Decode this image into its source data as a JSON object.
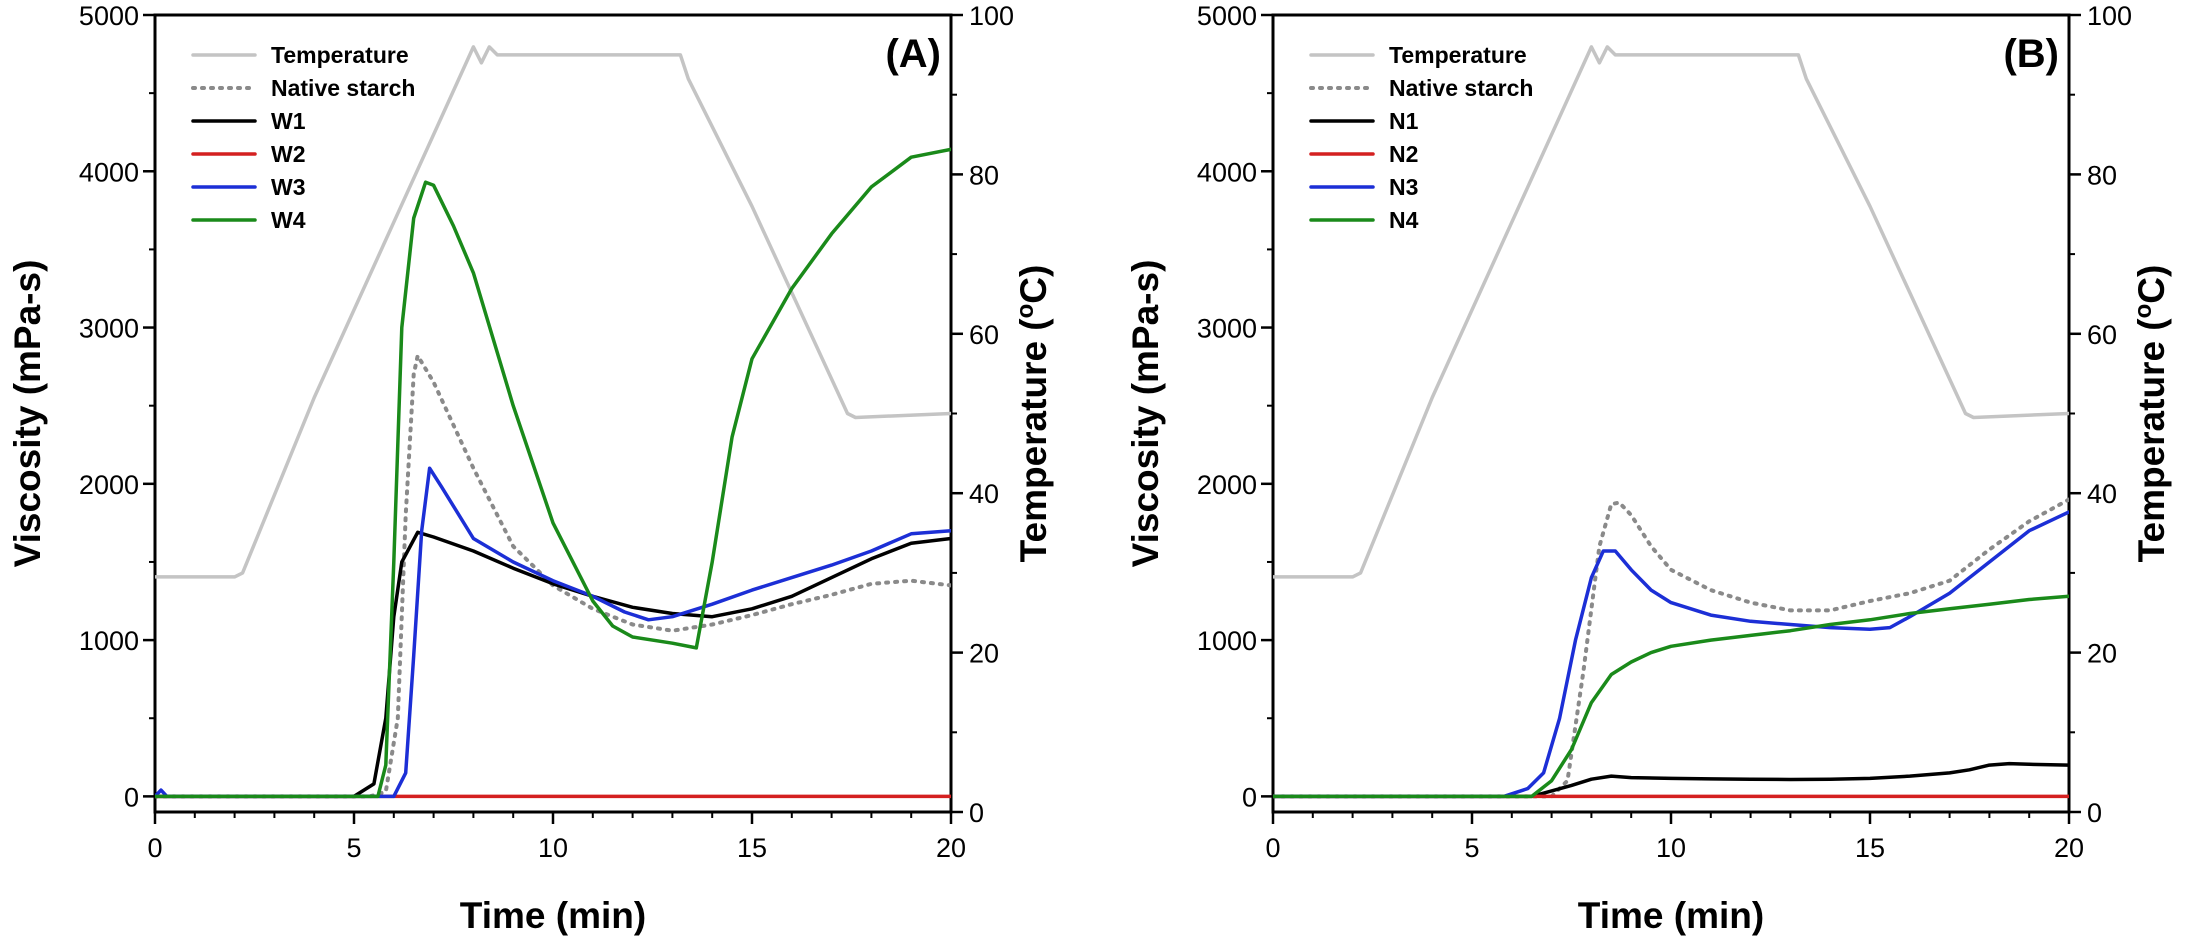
{
  "chart_data": [
    {
      "type": "line",
      "panel_label": "(A)",
      "xlabel": "Time (min)",
      "ylabel_left": "Viscosity (mPa-s)",
      "ylabel_right_prefix": "Temperature (",
      "ylabel_right_super": "o",
      "ylabel_right_suffix": "C)",
      "xlim": [
        0,
        20
      ],
      "ylim_left": [
        -100,
        5000
      ],
      "ylim_right": [
        0,
        100
      ],
      "xticks": [
        "0",
        "5",
        "10",
        "15",
        "20"
      ],
      "yticks_left": [
        "0",
        "1000",
        "2000",
        "3000",
        "4000",
        "5000"
      ],
      "yticks_right": [
        "0",
        "20",
        "40",
        "60",
        "80",
        "100"
      ],
      "legend_position": "top-left",
      "series": [
        {
          "name": "Temperature",
          "axis": "right",
          "color": "#c4c4c4",
          "dash": "solid",
          "x": [
            0,
            2,
            2.2,
            4,
            6,
            8,
            8.2,
            8.4,
            8.6,
            9,
            12,
            13.2,
            13.4,
            15,
            17.4,
            17.6,
            20
          ],
          "y": [
            29.5,
            29.5,
            30,
            52,
            74,
            96,
            94,
            96,
            95,
            95,
            95,
            95,
            92,
            76,
            50,
            49.5,
            50
          ]
        },
        {
          "name": "Native starch",
          "axis": "left",
          "color": "#8a8a8a",
          "dash": "dot",
          "x": [
            0,
            5.4,
            5.8,
            6.1,
            6.3,
            6.5,
            6.6,
            7,
            8,
            9,
            10,
            11,
            12,
            13,
            14,
            15,
            16,
            17,
            18,
            19,
            20
          ],
          "y": [
            0,
            0,
            30,
            500,
            1800,
            2700,
            2820,
            2650,
            2100,
            1600,
            1350,
            1200,
            1100,
            1060,
            1100,
            1160,
            1230,
            1290,
            1360,
            1380,
            1350
          ]
        },
        {
          "name": "W1",
          "axis": "left",
          "color": "#000000",
          "dash": "solid",
          "x": [
            0,
            5,
            5.5,
            5.8,
            6,
            6.2,
            6.6,
            7,
            8,
            9,
            10,
            11,
            12,
            13,
            14,
            15,
            16,
            17,
            18,
            19,
            20
          ],
          "y": [
            0,
            0,
            80,
            500,
            1150,
            1500,
            1690,
            1660,
            1570,
            1460,
            1360,
            1280,
            1210,
            1170,
            1150,
            1200,
            1280,
            1400,
            1520,
            1620,
            1650
          ]
        },
        {
          "name": "W2",
          "axis": "left",
          "color": "#d42020",
          "dash": "solid",
          "x": [
            0,
            20
          ],
          "y": [
            0,
            0
          ]
        },
        {
          "name": "W3",
          "axis": "left",
          "color": "#1c2fd6",
          "dash": "solid",
          "x": [
            0,
            0.15,
            0.3,
            6,
            6.3,
            6.5,
            6.7,
            6.9,
            7.2,
            8,
            9,
            10,
            11,
            11.8,
            12.4,
            13,
            14,
            15,
            16,
            17,
            18,
            19,
            20
          ],
          "y": [
            0,
            40,
            0,
            0,
            150,
            900,
            1700,
            2100,
            1980,
            1650,
            1500,
            1380,
            1280,
            1180,
            1130,
            1150,
            1230,
            1320,
            1400,
            1480,
            1570,
            1680,
            1700
          ]
        },
        {
          "name": "W4",
          "axis": "left",
          "color": "#1a8a1a",
          "dash": "solid",
          "x": [
            0,
            5.6,
            5.8,
            6,
            6.2,
            6.5,
            6.8,
            7,
            7.5,
            8,
            9,
            10,
            11,
            11.5,
            12,
            13,
            13.6,
            14,
            14.5,
            15,
            16,
            17,
            18,
            19,
            20
          ],
          "y": [
            0,
            0,
            200,
            1500,
            3000,
            3700,
            3930,
            3910,
            3650,
            3350,
            2500,
            1750,
            1250,
            1090,
            1020,
            980,
            950,
            1500,
            2300,
            2800,
            3250,
            3600,
            3900,
            4090,
            4140
          ]
        }
      ]
    },
    {
      "type": "line",
      "panel_label": "(B)",
      "xlabel": "Time (min)",
      "ylabel_left": "Viscosity (mPa-s)",
      "ylabel_right_prefix": "Temperature (",
      "ylabel_right_super": "o",
      "ylabel_right_suffix": "C)",
      "xlim": [
        0,
        20
      ],
      "ylim_left": [
        -100,
        5000
      ],
      "ylim_right": [
        0,
        100
      ],
      "xticks": [
        "0",
        "5",
        "10",
        "15",
        "20"
      ],
      "yticks_left": [
        "0",
        "1000",
        "2000",
        "3000",
        "4000",
        "5000"
      ],
      "yticks_right": [
        "0",
        "20",
        "40",
        "60",
        "80",
        "100"
      ],
      "legend_position": "top-left",
      "series": [
        {
          "name": "Temperature",
          "axis": "right",
          "color": "#c4c4c4",
          "dash": "solid",
          "x": [
            0,
            2,
            2.2,
            4,
            6,
            8,
            8.2,
            8.4,
            8.6,
            9,
            12,
            13.2,
            13.4,
            15,
            17.4,
            17.6,
            20
          ],
          "y": [
            29.5,
            29.5,
            30,
            52,
            74,
            96,
            94,
            96,
            95,
            95,
            95,
            95,
            92,
            76,
            50,
            49.5,
            50
          ]
        },
        {
          "name": "Native starch",
          "axis": "left",
          "color": "#8a8a8a",
          "dash": "dot",
          "x": [
            0,
            7,
            7.4,
            7.8,
            8.2,
            8.5,
            8.7,
            9,
            9.5,
            10,
            11,
            12,
            13,
            14,
            15,
            16,
            17,
            18,
            19,
            20
          ],
          "y": [
            0,
            0,
            100,
            800,
            1600,
            1870,
            1880,
            1800,
            1600,
            1450,
            1320,
            1240,
            1190,
            1190,
            1250,
            1300,
            1380,
            1580,
            1760,
            1900
          ]
        },
        {
          "name": "N1",
          "axis": "left",
          "color": "#000000",
          "dash": "solid",
          "x": [
            0,
            6.5,
            7.5,
            8,
            8.5,
            9,
            10,
            11,
            12,
            13,
            14,
            15,
            16,
            17,
            17.5,
            18,
            18.5,
            19,
            20
          ],
          "y": [
            0,
            0,
            70,
            110,
            130,
            120,
            115,
            112,
            110,
            108,
            110,
            115,
            130,
            150,
            170,
            200,
            210,
            205,
            200
          ]
        },
        {
          "name": "N2",
          "axis": "left",
          "color": "#d42020",
          "dash": "solid",
          "x": [
            0,
            20
          ],
          "y": [
            0,
            0
          ]
        },
        {
          "name": "N3",
          "axis": "left",
          "color": "#1c2fd6",
          "dash": "solid",
          "x": [
            0,
            5.8,
            6.4,
            6.8,
            7.2,
            7.6,
            8,
            8.3,
            8.6,
            9,
            9.5,
            10,
            11,
            12,
            13,
            14,
            15,
            15.5,
            16,
            17,
            18,
            19,
            20
          ],
          "y": [
            0,
            0,
            50,
            150,
            500,
            1000,
            1400,
            1570,
            1570,
            1450,
            1320,
            1240,
            1160,
            1120,
            1100,
            1080,
            1070,
            1080,
            1150,
            1300,
            1500,
            1700,
            1820
          ]
        },
        {
          "name": "N4",
          "axis": "left",
          "color": "#1a8a1a",
          "dash": "solid",
          "x": [
            0,
            6.5,
            7,
            7.5,
            8,
            8.5,
            9,
            9.5,
            10,
            11,
            12,
            13,
            14,
            15,
            16,
            17,
            18,
            19,
            20
          ],
          "y": [
            0,
            0,
            100,
            300,
            600,
            780,
            860,
            920,
            960,
            1000,
            1030,
            1060,
            1100,
            1130,
            1170,
            1200,
            1230,
            1260,
            1280
          ]
        }
      ]
    }
  ]
}
